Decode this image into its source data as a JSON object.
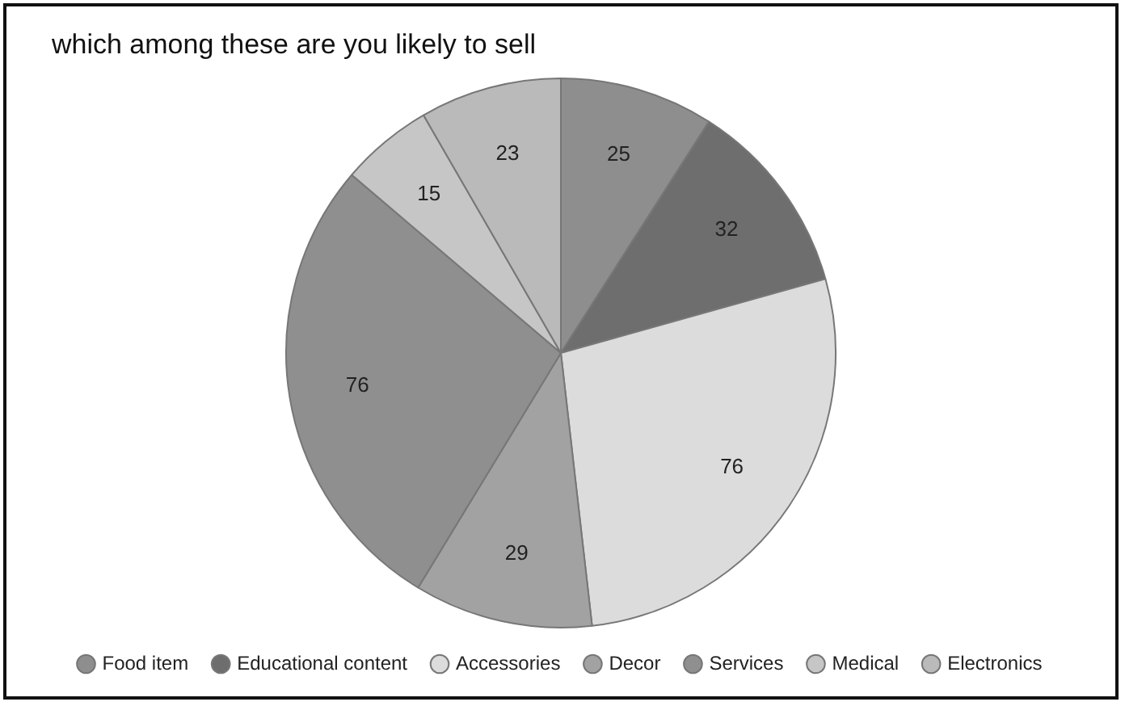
{
  "chart_data": {
    "type": "pie",
    "title": "which among these are you likely to sell",
    "categories": [
      "Food item",
      "Educational content",
      "Accessories",
      "Decor",
      "Services",
      "Medical",
      "Electronics"
    ],
    "values": [
      25,
      32,
      76,
      29,
      76,
      15,
      23
    ],
    "colors": [
      "#8e8e8e",
      "#6e6e6e",
      "#dcdcdc",
      "#a2a2a2",
      "#8f8f8f",
      "#c6c6c6",
      "#bababa"
    ],
    "data_labels": true,
    "legend": "bottom"
  }
}
